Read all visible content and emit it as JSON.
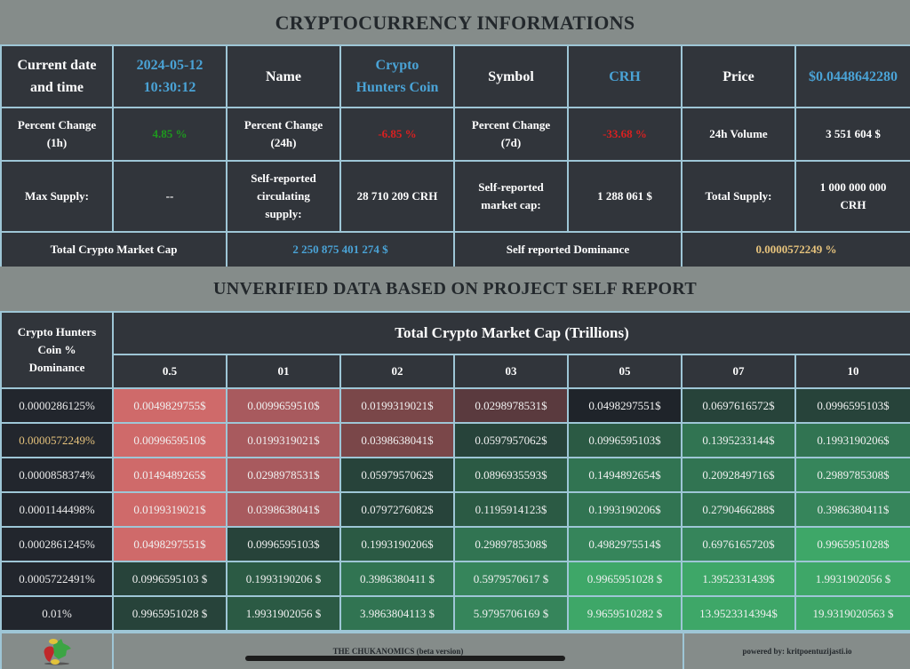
{
  "header": {
    "title": "CRYPTOCURRENCY INFORMATIONS"
  },
  "info": {
    "row1": {
      "date_label": "Current date and time",
      "date_value_line1": "2024-05-12",
      "date_value_line2": "10:30:12",
      "name_label": "Name",
      "name_value_line1": "Crypto",
      "name_value_line2": "Hunters Coin",
      "symbol_label": "Symbol",
      "symbol_value": "CRH",
      "price_label": "Price",
      "price_value": "$0.0448642280"
    },
    "row2": {
      "pc1h_label_line1": "Percent Change",
      "pc1h_label_line2": "(1h)",
      "pc1h_value": "4.85 %",
      "pc24h_label_line1": "Percent Change",
      "pc24h_label_line2": "(24h)",
      "pc24h_value": "-6.85 %",
      "pc7d_label_line1": "Percent Change",
      "pc7d_label_line2": "(7d)",
      "pc7d_value": "-33.68 %",
      "volume_label": "24h Volume",
      "volume_value": "3 551 604 $"
    },
    "row3": {
      "max_supply_label": "Max Supply:",
      "max_supply_value": "--",
      "circ_supply_label_line1": "Self-reported",
      "circ_supply_label_line2": "circulating",
      "circ_supply_label_line3": "supply:",
      "circ_supply_value": "28 710 209 CRH",
      "market_cap_label_line1": "Self-reported",
      "market_cap_label_line2": "market cap:",
      "market_cap_value": "1 288 061 $",
      "total_supply_label": "Total Supply:",
      "total_supply_value_line1": "1 000 000 000",
      "total_supply_value_line2": "CRH"
    },
    "row4": {
      "total_mc_label": "Total Crypto Market Cap",
      "total_mc_value": "2 250 875 401 274 $",
      "dominance_label": "Self reported Dominance",
      "dominance_value": "0.0000572249 %"
    },
    "colors": {
      "blue": "#4aa3d6",
      "green": "#1e9a1e",
      "red": "#d92020",
      "gold": "#e5c27c"
    }
  },
  "projection": {
    "title": "UNVERIFIED DATA BASED ON PROJECT SELF REPORT",
    "corner_line1": "Crypto Hunters",
    "corner_line2": "Coin %",
    "corner_line3": "Dominance",
    "cap_title": "Total Crypto Market Cap (Trillions)",
    "columns": [
      "0.5",
      "01",
      "02",
      "03",
      "05",
      "07",
      "10"
    ],
    "rows": [
      {
        "dominance": "0.0000286125%",
        "highlight": false,
        "values": [
          "0.0049829755$",
          "0.0099659510$",
          "0.0199319021$",
          "0.0298978531$",
          "0.0498297551$",
          "0.0697616572$",
          "0.0996595103$"
        ],
        "colors": [
          "#cf6a6a",
          "#a85a5e",
          "#7a4749",
          "#5a3a3e",
          "#1f242a",
          "#27433a",
          "#27433a"
        ]
      },
      {
        "dominance": "0.0000572249%",
        "highlight": true,
        "values": [
          "0.0099659510$",
          "0.0199319021$",
          "0.0398638041$",
          "0.0597957062$",
          "0.0996595103$",
          "0.1395233144$",
          "0.1993190206$"
        ],
        "colors": [
          "#cf6a6a",
          "#a85a5e",
          "#7a4749",
          "#27433a",
          "#2b5a44",
          "#317452",
          "#317452"
        ]
      },
      {
        "dominance": "0.0000858374%",
        "highlight": false,
        "values": [
          "0.0149489265$",
          "0.0298978531$",
          "0.0597957062$",
          "0.0896935593$",
          "0.1494892654$",
          "0.2092849716$",
          "0.2989785308$"
        ],
        "colors": [
          "#cf6a6a",
          "#a85a5e",
          "#27433a",
          "#2b5a44",
          "#317452",
          "#317452",
          "#36855b"
        ]
      },
      {
        "dominance": "0.0001144498%",
        "highlight": false,
        "values": [
          "0.0199319021$",
          "0.0398638041$",
          "0.0797276082$",
          "0.1195914123$",
          "0.1993190206$",
          "0.2790466288$",
          "0.3986380411$"
        ],
        "colors": [
          "#cf6a6a",
          "#a85a5e",
          "#27433a",
          "#2b5a44",
          "#317452",
          "#317452",
          "#36855b"
        ]
      },
      {
        "dominance": "0.0002861245%",
        "highlight": false,
        "values": [
          "0.0498297551$",
          "0.0996595103$",
          "0.1993190206$",
          "0.2989785308$",
          "0.4982975514$",
          "0.6976165720$",
          "0.9965951028$"
        ],
        "colors": [
          "#cf6a6a",
          "#27433a",
          "#2b5a44",
          "#317452",
          "#36855b",
          "#36855b",
          "#3ea768"
        ]
      },
      {
        "dominance": "0.0005722491%",
        "highlight": false,
        "values": [
          "0.0996595103 $",
          "0.1993190206 $",
          "0.3986380411 $",
          "0.5979570617 $",
          "0.9965951028 $",
          "1.3952331439$",
          "1.9931902056 $"
        ],
        "colors": [
          "#27433a",
          "#2b5a44",
          "#317452",
          "#36855b",
          "#3ea768",
          "#3ea768",
          "#3ea768"
        ]
      },
      {
        "dominance": "0.01%",
        "highlight": false,
        "values": [
          "0.9965951028 $",
          "1.9931902056 $",
          "3.9863804113 $",
          "5.9795706169 $",
          "9.9659510282 $",
          "13.9523314394$",
          "19.9319020563 $"
        ],
        "colors": [
          "#27433a",
          "#2b5a44",
          "#317452",
          "#36855b",
          "#3ea768",
          "#3ea768",
          "#3ea768"
        ]
      }
    ]
  },
  "footer": {
    "logo_icon": "chukanomics-logo-icon",
    "center_text": "THE CHUKANOMICS (beta version)",
    "powered_by": "powered by: kritpoentuzijasti.io"
  }
}
